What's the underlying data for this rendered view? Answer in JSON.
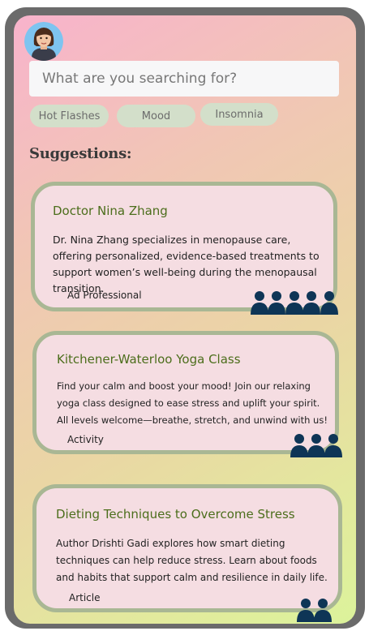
{
  "search": {
    "placeholder": "What are you searching for?"
  },
  "chips": [
    "Hot Flashes",
    "Mood",
    "Insomnia"
  ],
  "suggestions_heading": "Suggestions:",
  "cards": [
    {
      "title": "Doctor Nina Zhang",
      "description": "Dr. Nina Zhang specializes in menopause care, offering personalized, evidence-based treatments to support women’s well-being during the menopausal transition.",
      "type": "Ad Professional",
      "people_count": 5
    },
    {
      "title": "Kitchener-Waterloo Yoga Class",
      "description": "Find your calm and boost your mood! Join our relaxing yoga class designed to ease stress and uplift your spirit. All levels welcome—breathe, stretch, and unwind with us!",
      "type": "Activity",
      "people_count": 3
    },
    {
      "title": "Dieting Techniques to Overcome Stress",
      "description": "Author Drishti Gadi explores how smart dieting techniques can help reduce stress. Learn about foods and habits that support calm and resilience in daily life.",
      "type": "Article",
      "people_count": 2
    }
  ],
  "colors": {
    "card_border": "#a9b794",
    "card_bg": "#f5dde2",
    "title_green": "#4c6e1c",
    "chip_bg": "#d3dfca",
    "people_icon": "#0e3556"
  },
  "icons": {
    "avatar": "user-avatar-icon",
    "people": "people-group-icon"
  }
}
